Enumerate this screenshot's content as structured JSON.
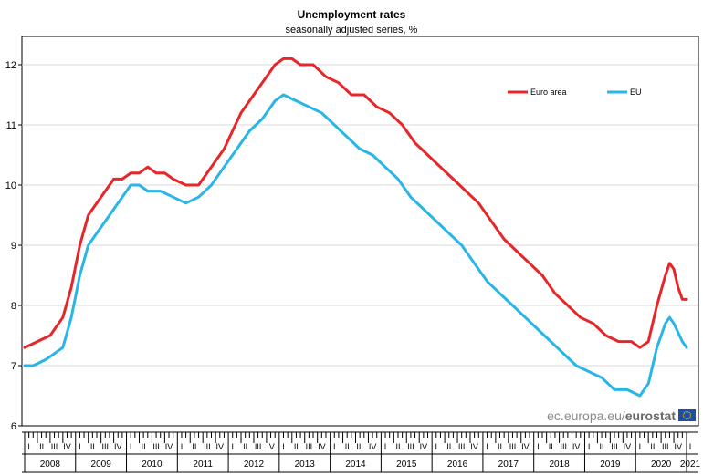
{
  "chart_data": {
    "type": "line",
    "title": "Unemployment rates",
    "subtitle": "seasonally adjusted series, %",
    "xlabel": "",
    "ylabel": "",
    "ylim": [
      6,
      12.5
    ],
    "yticks": [
      6,
      7,
      8,
      9,
      10,
      11,
      12
    ],
    "x_start": "2008-01",
    "x_end": "2021-01",
    "quarter_labels": [
      "I",
      "II",
      "III",
      "IV"
    ],
    "years": [
      "2008",
      "2009",
      "2010",
      "2011",
      "2012",
      "2013",
      "2014",
      "2015",
      "2016",
      "2017",
      "2018",
      "2019",
      "2020",
      "2021"
    ],
    "grid": true,
    "legend_position": "top-right",
    "series": [
      {
        "name": "Euro area",
        "color": "#e8262a",
        "points": [
          [
            "2008-01",
            7.3
          ],
          [
            "2008-04",
            7.4
          ],
          [
            "2008-07",
            7.5
          ],
          [
            "2008-10",
            7.8
          ],
          [
            "2008-12",
            8.3
          ],
          [
            "2009-02",
            9.0
          ],
          [
            "2009-04",
            9.5
          ],
          [
            "2009-06",
            9.7
          ],
          [
            "2009-08",
            9.9
          ],
          [
            "2009-10",
            10.1
          ],
          [
            "2009-12",
            10.1
          ],
          [
            "2010-02",
            10.2
          ],
          [
            "2010-04",
            10.2
          ],
          [
            "2010-06",
            10.3
          ],
          [
            "2010-08",
            10.2
          ],
          [
            "2010-10",
            10.2
          ],
          [
            "2010-12",
            10.1
          ],
          [
            "2011-03",
            10.0
          ],
          [
            "2011-06",
            10.0
          ],
          [
            "2011-08",
            10.2
          ],
          [
            "2011-10",
            10.4
          ],
          [
            "2011-12",
            10.6
          ],
          [
            "2012-02",
            10.9
          ],
          [
            "2012-04",
            11.2
          ],
          [
            "2012-06",
            11.4
          ],
          [
            "2012-08",
            11.6
          ],
          [
            "2012-10",
            11.8
          ],
          [
            "2012-12",
            12.0
          ],
          [
            "2013-02",
            12.1
          ],
          [
            "2013-04",
            12.1
          ],
          [
            "2013-06",
            12.0
          ],
          [
            "2013-09",
            12.0
          ],
          [
            "2013-12",
            11.8
          ],
          [
            "2014-03",
            11.7
          ],
          [
            "2014-06",
            11.5
          ],
          [
            "2014-09",
            11.5
          ],
          [
            "2014-12",
            11.3
          ],
          [
            "2015-03",
            11.2
          ],
          [
            "2015-06",
            11.0
          ],
          [
            "2015-09",
            10.7
          ],
          [
            "2015-12",
            10.5
          ],
          [
            "2016-03",
            10.3
          ],
          [
            "2016-06",
            10.1
          ],
          [
            "2016-09",
            9.9
          ],
          [
            "2016-12",
            9.7
          ],
          [
            "2017-03",
            9.4
          ],
          [
            "2017-06",
            9.1
          ],
          [
            "2017-09",
            8.9
          ],
          [
            "2017-12",
            8.7
          ],
          [
            "2018-03",
            8.5
          ],
          [
            "2018-06",
            8.2
          ],
          [
            "2018-09",
            8.0
          ],
          [
            "2018-12",
            7.8
          ],
          [
            "2019-03",
            7.7
          ],
          [
            "2019-06",
            7.5
          ],
          [
            "2019-09",
            7.4
          ],
          [
            "2019-12",
            7.4
          ],
          [
            "2020-02",
            7.3
          ],
          [
            "2020-04",
            7.4
          ],
          [
            "2020-06",
            8.0
          ],
          [
            "2020-08",
            8.5
          ],
          [
            "2020-09",
            8.7
          ],
          [
            "2020-10",
            8.6
          ],
          [
            "2020-11",
            8.3
          ],
          [
            "2020-12",
            8.1
          ],
          [
            "2021-01",
            8.1
          ]
        ]
      },
      {
        "name": "EU",
        "color": "#29b6e6",
        "points": [
          [
            "2008-01",
            7.0
          ],
          [
            "2008-03",
            7.0
          ],
          [
            "2008-06",
            7.1
          ],
          [
            "2008-08",
            7.2
          ],
          [
            "2008-10",
            7.3
          ],
          [
            "2008-12",
            7.8
          ],
          [
            "2009-02",
            8.5
          ],
          [
            "2009-04",
            9.0
          ],
          [
            "2009-06",
            9.2
          ],
          [
            "2009-08",
            9.4
          ],
          [
            "2009-10",
            9.6
          ],
          [
            "2009-12",
            9.8
          ],
          [
            "2010-02",
            10.0
          ],
          [
            "2010-04",
            10.0
          ],
          [
            "2010-06",
            9.9
          ],
          [
            "2010-09",
            9.9
          ],
          [
            "2010-12",
            9.8
          ],
          [
            "2011-03",
            9.7
          ],
          [
            "2011-06",
            9.8
          ],
          [
            "2011-09",
            10.0
          ],
          [
            "2011-12",
            10.3
          ],
          [
            "2012-03",
            10.6
          ],
          [
            "2012-06",
            10.9
          ],
          [
            "2012-09",
            11.1
          ],
          [
            "2012-12",
            11.4
          ],
          [
            "2013-02",
            11.5
          ],
          [
            "2013-05",
            11.4
          ],
          [
            "2013-08",
            11.3
          ],
          [
            "2013-11",
            11.2
          ],
          [
            "2014-02",
            11.0
          ],
          [
            "2014-05",
            10.8
          ],
          [
            "2014-08",
            10.6
          ],
          [
            "2014-11",
            10.5
          ],
          [
            "2015-02",
            10.3
          ],
          [
            "2015-05",
            10.1
          ],
          [
            "2015-08",
            9.8
          ],
          [
            "2015-11",
            9.6
          ],
          [
            "2016-02",
            9.4
          ],
          [
            "2016-05",
            9.2
          ],
          [
            "2016-08",
            9.0
          ],
          [
            "2016-11",
            8.7
          ],
          [
            "2017-02",
            8.4
          ],
          [
            "2017-05",
            8.2
          ],
          [
            "2017-08",
            8.0
          ],
          [
            "2017-11",
            7.8
          ],
          [
            "2018-02",
            7.6
          ],
          [
            "2018-05",
            7.4
          ],
          [
            "2018-08",
            7.2
          ],
          [
            "2018-11",
            7.0
          ],
          [
            "2019-02",
            6.9
          ],
          [
            "2019-05",
            6.8
          ],
          [
            "2019-08",
            6.6
          ],
          [
            "2019-11",
            6.6
          ],
          [
            "2020-02",
            6.5
          ],
          [
            "2020-04",
            6.7
          ],
          [
            "2020-06",
            7.3
          ],
          [
            "2020-08",
            7.7
          ],
          [
            "2020-09",
            7.8
          ],
          [
            "2020-10",
            7.7
          ],
          [
            "2020-12",
            7.4
          ],
          [
            "2021-01",
            7.3
          ]
        ]
      }
    ],
    "annotations": [
      "ec.europa.eu/eurostat"
    ]
  }
}
